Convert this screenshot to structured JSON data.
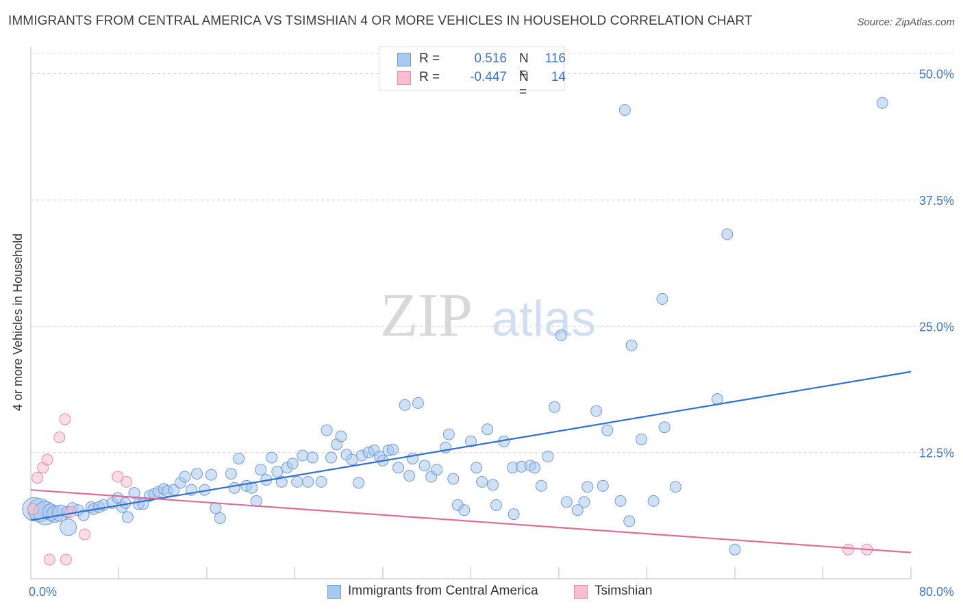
{
  "title": "IMMIGRANTS FROM CENTRAL AMERICA VS TSIMSHIAN 4 OR MORE VEHICLES IN HOUSEHOLD CORRELATION CHART",
  "source": "Source: ZipAtlas.com",
  "watermark": {
    "zip": "ZIP",
    "atlas": "atlas"
  },
  "legend": {
    "rows": [
      {
        "r_label": "R =",
        "r_value": "0.516",
        "n_label": "N =",
        "n_value": "116"
      },
      {
        "r_label": "R =",
        "r_value": "-0.447",
        "n_label": "N =",
        "n_value": "14"
      }
    ]
  },
  "bottom_legend": [
    "Immigrants from Central America",
    "Tsimshian"
  ],
  "colors": {
    "blue_fill": "#a9c8ef",
    "blue_stroke": "#6d9ad8",
    "blue_line": "#2f6fd0",
    "pink_fill": "#f6bfd0",
    "pink_stroke": "#e88aa8",
    "pink_line": "#e06b98",
    "tick_label": "#3b73c8",
    "grid": "#d8d8d8"
  },
  "chart_data": {
    "type": "scatter",
    "title": "IMMIGRANTS FROM CENTRAL AMERICA VS TSIMSHIAN 4 OR MORE VEHICLES IN HOUSEHOLD CORRELATION CHART",
    "xlabel": "",
    "ylabel": "4 or more Vehicles in Household",
    "xlim": [
      0,
      80
    ],
    "ylim": [
      0,
      52
    ],
    "x_tick_labels": [
      "0.0%",
      "80.0%"
    ],
    "y_ticks": [
      12.5,
      25.0,
      37.5,
      50.0
    ],
    "y_tick_labels": [
      "12.5%",
      "25.0%",
      "37.5%",
      "50.0%"
    ],
    "grid": true,
    "legend_position": "top-center",
    "series": [
      {
        "name": "Immigrants from Central America",
        "trend": {
          "x": [
            0,
            80
          ],
          "y": [
            5.8,
            20.5
          ]
        },
        "points": [
          [
            0.3,
            6.9,
            "L"
          ],
          [
            0.8,
            6.8,
            "L"
          ],
          [
            1.3,
            6.5,
            "L"
          ],
          [
            1.8,
            6.6,
            "M"
          ],
          [
            2.2,
            6.4,
            "M"
          ],
          [
            2.7,
            6.5,
            "M"
          ],
          [
            3.3,
            6.6
          ],
          [
            3.4,
            5.1,
            "M"
          ],
          [
            3.8,
            7.0
          ],
          [
            4.3,
            6.8
          ],
          [
            4.8,
            6.3
          ],
          [
            5.5,
            7.1
          ],
          [
            5.7,
            6.9
          ],
          [
            6.2,
            7.1
          ],
          [
            6.6,
            7.3
          ],
          [
            7.4,
            7.5
          ],
          [
            7.9,
            8.0
          ],
          [
            8.3,
            7.1
          ],
          [
            8.6,
            7.5
          ],
          [
            8.8,
            6.1
          ],
          [
            9.4,
            8.5
          ],
          [
            9.8,
            7.4
          ],
          [
            10.2,
            7.4
          ],
          [
            10.8,
            8.2
          ],
          [
            11.2,
            8.4
          ],
          [
            11.6,
            8.6
          ],
          [
            12.1,
            8.9
          ],
          [
            12.4,
            8.7
          ],
          [
            13.0,
            8.8
          ],
          [
            13.6,
            9.5
          ],
          [
            14.0,
            10.1
          ],
          [
            14.6,
            8.8
          ],
          [
            15.1,
            10.4
          ],
          [
            15.8,
            8.8
          ],
          [
            16.4,
            10.3
          ],
          [
            16.8,
            7.0
          ],
          [
            17.2,
            6.0
          ],
          [
            18.2,
            10.4
          ],
          [
            18.5,
            9.0
          ],
          [
            18.9,
            11.9
          ],
          [
            19.6,
            9.2
          ],
          [
            20.1,
            9.0
          ],
          [
            20.5,
            7.7
          ],
          [
            20.9,
            10.8
          ],
          [
            21.4,
            9.8
          ],
          [
            21.9,
            12.0
          ],
          [
            22.4,
            10.6
          ],
          [
            22.8,
            9.6
          ],
          [
            23.3,
            11.0
          ],
          [
            23.8,
            11.4
          ],
          [
            24.2,
            9.6
          ],
          [
            24.7,
            12.2
          ],
          [
            25.2,
            9.6
          ],
          [
            25.6,
            12.0
          ],
          [
            26.4,
            9.6
          ],
          [
            26.9,
            14.7
          ],
          [
            27.3,
            12.0
          ],
          [
            27.8,
            13.3
          ],
          [
            28.2,
            14.1
          ],
          [
            28.7,
            12.3
          ],
          [
            29.2,
            11.8
          ],
          [
            29.8,
            9.5
          ],
          [
            30.1,
            12.2
          ],
          [
            30.7,
            12.5
          ],
          [
            31.2,
            12.7
          ],
          [
            31.7,
            12.1
          ],
          [
            32.0,
            11.7
          ],
          [
            32.5,
            12.7
          ],
          [
            32.9,
            12.8
          ],
          [
            33.4,
            11.0
          ],
          [
            34.0,
            17.2
          ],
          [
            34.4,
            10.2
          ],
          [
            34.7,
            11.9
          ],
          [
            35.2,
            17.4
          ],
          [
            35.8,
            11.2
          ],
          [
            36.4,
            10.1
          ],
          [
            36.9,
            10.8
          ],
          [
            37.7,
            13.0
          ],
          [
            38.0,
            14.3
          ],
          [
            38.4,
            9.9
          ],
          [
            38.8,
            7.3
          ],
          [
            39.4,
            6.8
          ],
          [
            40.0,
            13.6
          ],
          [
            40.5,
            11.0
          ],
          [
            41.0,
            9.6
          ],
          [
            41.5,
            14.8
          ],
          [
            42.0,
            9.3
          ],
          [
            42.3,
            7.3
          ],
          [
            43.0,
            13.6
          ],
          [
            43.8,
            11.0
          ],
          [
            43.9,
            6.4
          ],
          [
            44.6,
            11.1
          ],
          [
            45.4,
            11.2
          ],
          [
            45.8,
            11.0
          ],
          [
            46.4,
            9.2
          ],
          [
            47.0,
            12.1
          ],
          [
            47.6,
            17.0
          ],
          [
            48.2,
            24.1
          ],
          [
            48.7,
            7.6
          ],
          [
            49.7,
            6.8
          ],
          [
            50.3,
            7.6
          ],
          [
            50.6,
            9.1
          ],
          [
            51.4,
            16.6
          ],
          [
            52.0,
            9.2
          ],
          [
            52.4,
            14.7
          ],
          [
            53.6,
            7.7
          ],
          [
            54.0,
            46.4
          ],
          [
            54.4,
            5.7
          ],
          [
            54.6,
            23.1
          ],
          [
            55.5,
            13.8
          ],
          [
            56.6,
            7.7
          ],
          [
            57.4,
            27.7
          ],
          [
            57.6,
            15.0
          ],
          [
            58.6,
            9.1
          ],
          [
            62.4,
            17.8
          ],
          [
            63.3,
            34.1
          ],
          [
            64.0,
            2.9
          ],
          [
            77.4,
            47.1
          ]
        ]
      },
      {
        "name": "Tsimshian",
        "trend": {
          "x": [
            0,
            80
          ],
          "y": [
            8.8,
            2.6
          ]
        },
        "points": [
          [
            0.2,
            6.9
          ],
          [
            0.6,
            10.0
          ],
          [
            1.1,
            11.0
          ],
          [
            1.5,
            11.8
          ],
          [
            1.7,
            1.9
          ],
          [
            2.6,
            14.0
          ],
          [
            3.1,
            15.8
          ],
          [
            3.2,
            1.9
          ],
          [
            3.6,
            6.6
          ],
          [
            4.9,
            4.4
          ],
          [
            7.9,
            10.1
          ],
          [
            8.7,
            9.6
          ],
          [
            74.3,
            2.9
          ],
          [
            76.0,
            2.9
          ]
        ]
      }
    ]
  }
}
